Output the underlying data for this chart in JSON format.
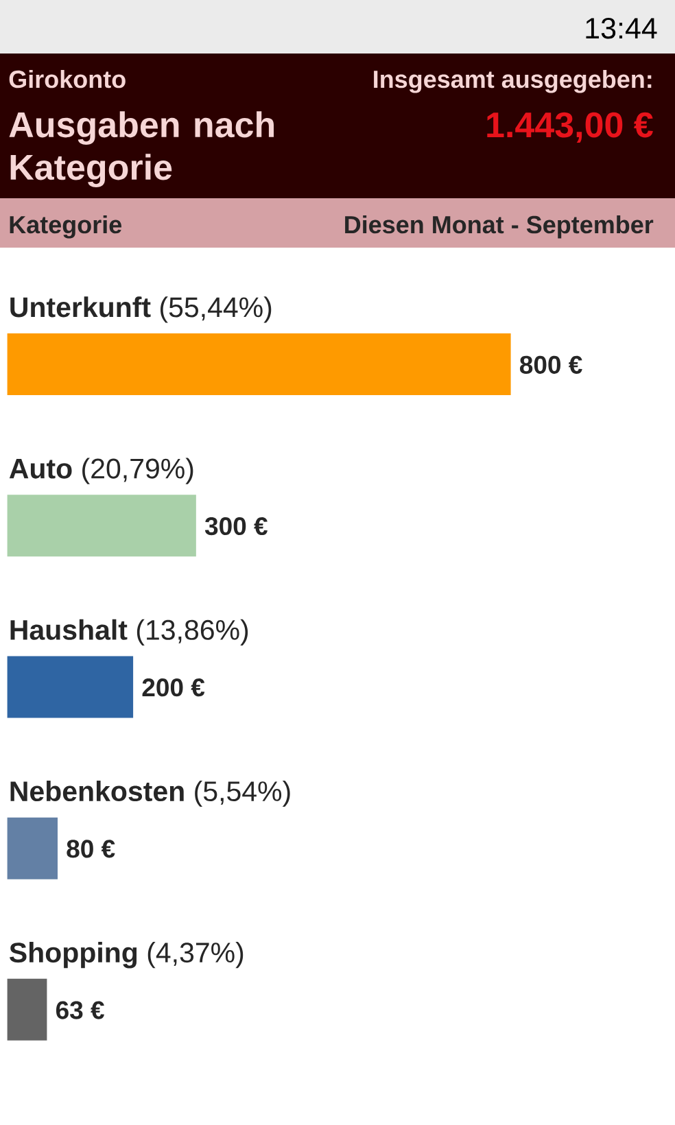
{
  "chart_data": {
    "type": "bar",
    "orientation": "horizontal",
    "subtitle": "Girokonto",
    "title": "Ausgaben nach Kategorie",
    "ylabel": "Kategorie",
    "annotations": [
      "Insgesamt ausgegeben:",
      "1.443,00 €",
      "Diesen Monat - September",
      "13:44"
    ],
    "categories": [
      "**Unterkunft** (55,44%)",
      "**Auto** (20,79%)",
      "**Haushalt** (13,86%)",
      "**Nebenkosten** (5,54%)",
      "**Shopping** (4,37%)"
    ],
    "values": [
      800,
      300,
      200,
      80,
      63
    ],
    "value_labels": [
      "800 €",
      "300 €",
      "200 €",
      "80 €",
      "63 €"
    ],
    "colors": [
      "#fe9a00",
      "#a9d0a9",
      "#2f65a3",
      "#6380a5",
      "#646464"
    ],
    "tick_labels": "y"
  }
}
